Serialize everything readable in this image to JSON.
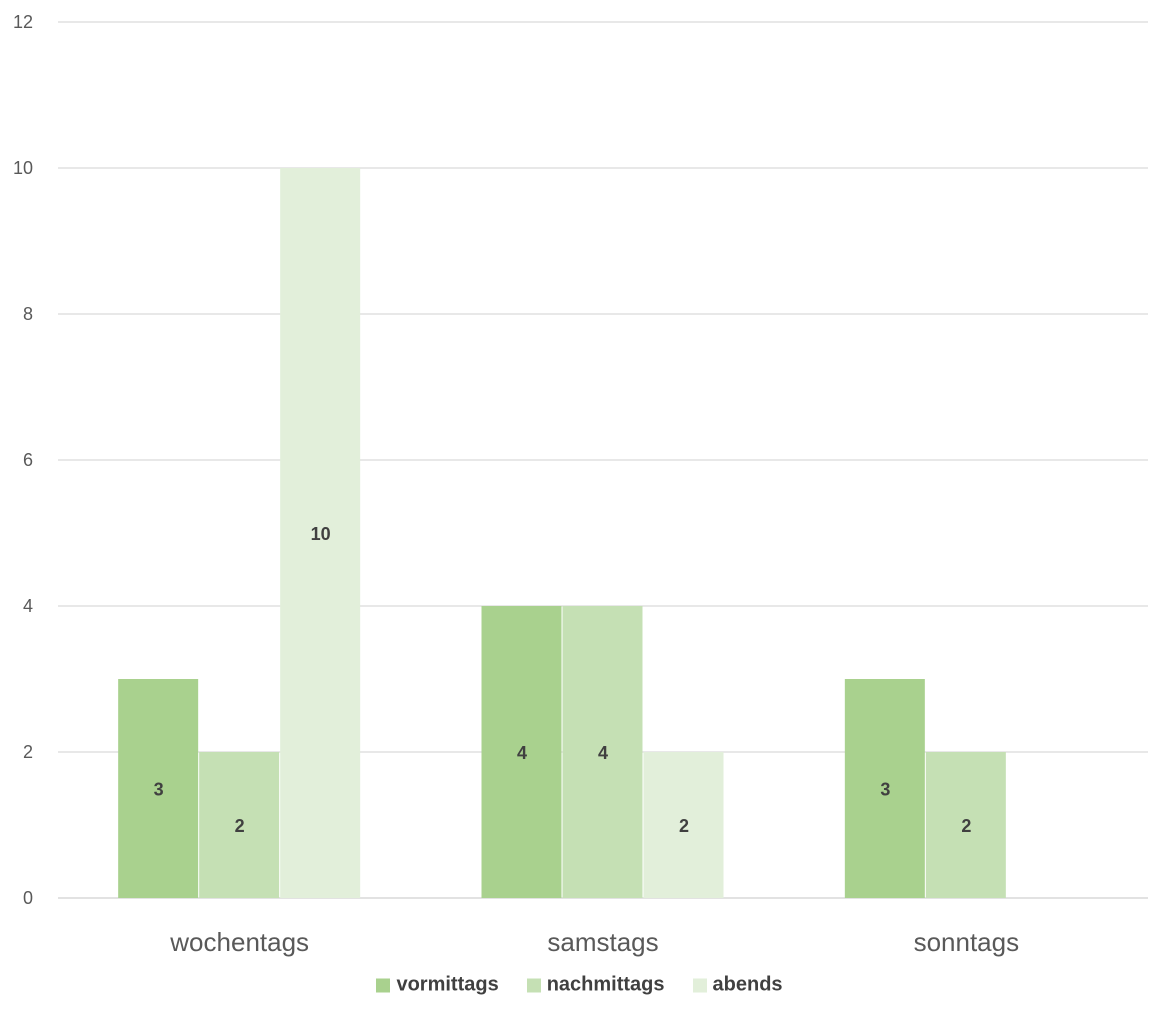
{
  "chart_data": {
    "type": "bar",
    "categories": [
      "wochentags",
      "samstags",
      "sonntags"
    ],
    "series": [
      {
        "name": "vormittags",
        "values": [
          3,
          4,
          3
        ],
        "color": "#a9d18e"
      },
      {
        "name": "nachmittags",
        "values": [
          2,
          4,
          2
        ],
        "color": "#c5e0b4"
      },
      {
        "name": "abends",
        "values": [
          10,
          2,
          0
        ],
        "color": "#e2efda"
      }
    ],
    "ylim": [
      0,
      12
    ],
    "yticks": [
      0,
      2,
      4,
      6,
      8,
      10,
      12
    ],
    "grid": true,
    "legend": "bottom",
    "data_labels": [
      [
        3,
        2,
        10
      ],
      [
        4,
        4,
        2
      ],
      [
        3,
        2,
        null
      ]
    ],
    "gridline_color": "#d9d9d9"
  }
}
